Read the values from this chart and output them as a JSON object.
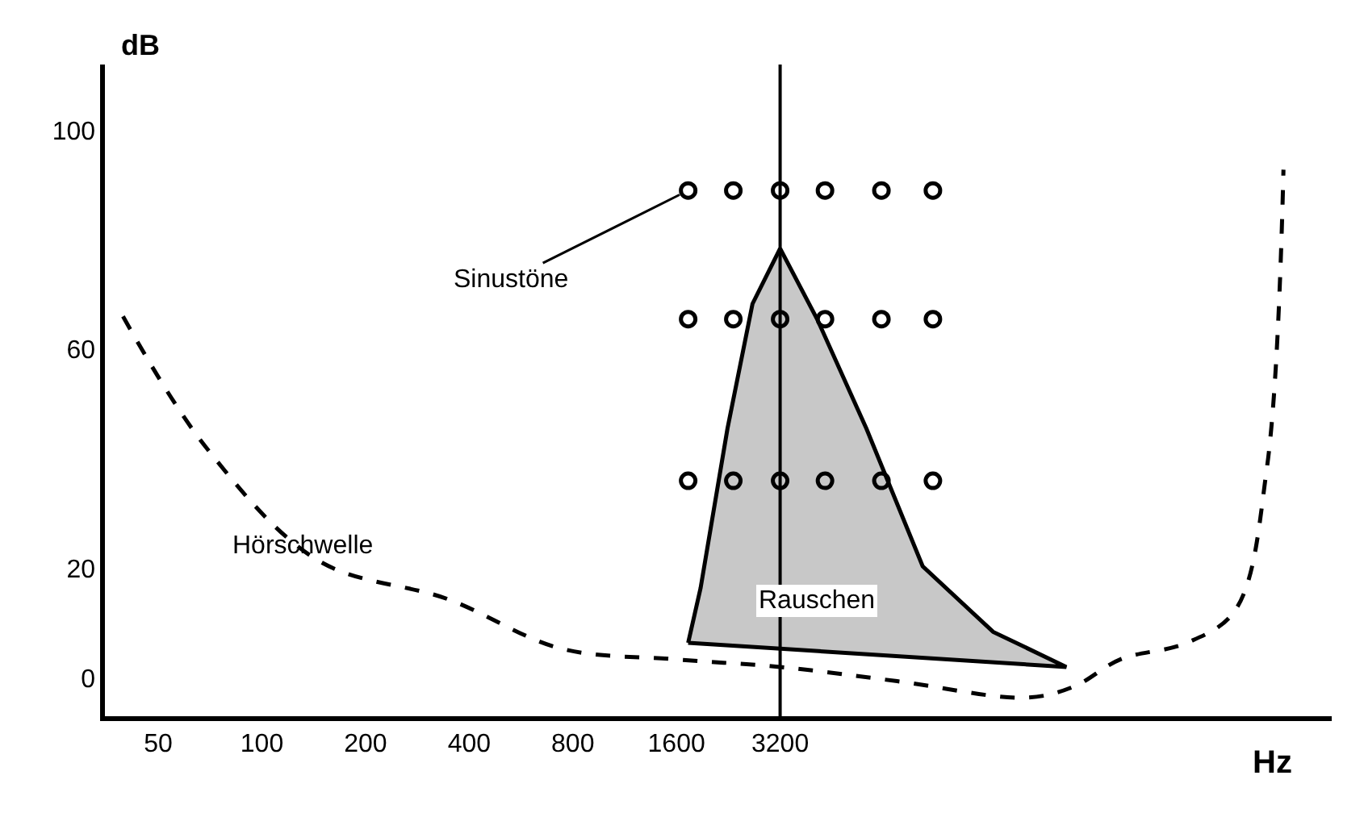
{
  "chart_data": {
    "type": "line",
    "xlabel": "Hz",
    "ylabel": "dB",
    "log": "x",
    "xlim": [
      35,
      128000
    ],
    "ylim": [
      -7,
      112
    ],
    "xticks": [
      50,
      100,
      200,
      400,
      800,
      1600,
      3200
    ],
    "yticks": [
      0,
      20,
      60,
      100
    ],
    "series": [
      {
        "line_style": "dashed",
        "color": "#000000",
        "x": [
          39.5,
          69,
          146,
          346,
          735,
          1570,
          3200,
          7000,
          16600,
          22800,
          31200,
          48600,
          67200,
          83000,
          92700
        ],
        "values": [
          66,
          42,
          21.4,
          14.4,
          5.4,
          3.4,
          2,
          -0.6,
          -3.6,
          -1.6,
          3.4,
          6.4,
          12.4,
          38.4,
          92.8
        ]
      },
      {
        "type": "area",
        "color": "#c8c8c8",
        "x": [
          1730,
          1880,
          2250,
          2660,
          3200,
          4100,
          5700,
          8300,
          13300,
          21700,
          1730
        ],
        "values": [
          6.4,
          16.4,
          45.5,
          68.3,
          78.4,
          65.5,
          45.5,
          20.4,
          8.4,
          2,
          6.4
        ]
      },
      {
        "type": "scatter",
        "marker": "circle",
        "color": "#000000",
        "x": [
          1730,
          2340,
          3200,
          4320,
          6300,
          8890,
          1730,
          2340,
          3200,
          4320,
          6300,
          8890,
          1730,
          2340,
          3200,
          4320,
          6300,
          8890
        ],
        "values": [
          89,
          89,
          89,
          89,
          89,
          89,
          65.5,
          65.5,
          65.5,
          65.5,
          65.5,
          65.5,
          36,
          36,
          36,
          36,
          36,
          36
        ]
      }
    ],
    "ref_lines": [
      {
        "axis": "x",
        "value": 3200,
        "color": "#000000"
      }
    ],
    "annotations": [
      {
        "text": "Sinustöne",
        "x": 1730,
        "y": 89
      },
      {
        "text": "Hörschwelle",
        "x": 131,
        "y": 24
      },
      "Rauschen"
    ]
  }
}
